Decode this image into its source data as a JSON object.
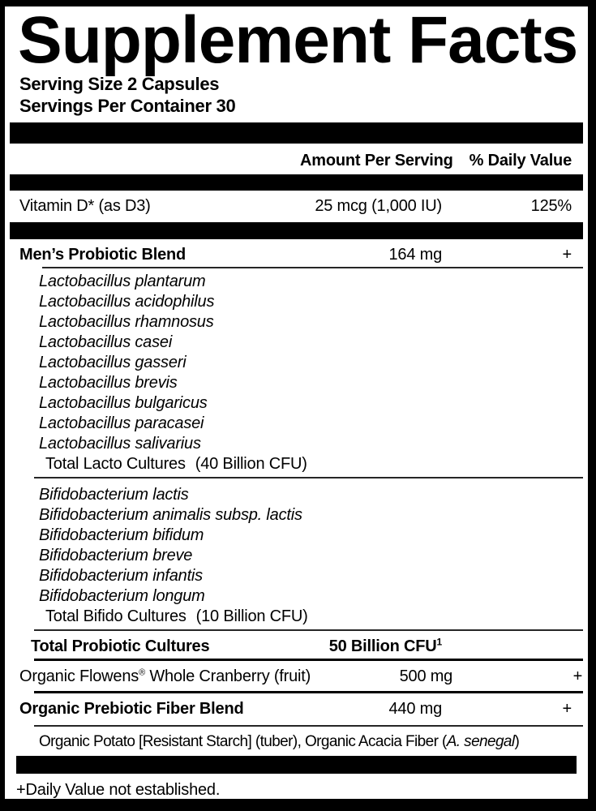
{
  "title": "Supplement Facts",
  "serving": {
    "size": "Serving Size 2 Capsules",
    "per_container": "Servings Per Container 30"
  },
  "columns": {
    "amount": "Amount Per Serving",
    "daily_value": "% Daily Value"
  },
  "rows": {
    "vitamin_d": {
      "name": "Vitamin D* (as D3)",
      "amount": "25 mcg (1,000 IU)",
      "dv": "125%"
    },
    "mens_blend": {
      "name": "Men’s Probiotic Blend",
      "amount": "164 mg",
      "dv": "+"
    },
    "total_probiotic": {
      "name": "Total Probiotic Cultures",
      "amount": "50 Billion CFU",
      "amount_superscript": "1"
    },
    "flowens": {
      "name_prefix": "Organic Flowens",
      "trademark": "®",
      "name_suffix": " Whole Cranberry (fruit)",
      "amount": "500 mg",
      "dv": "+"
    },
    "fiber_blend": {
      "name": "Organic Prebiotic Fiber Blend",
      "amount": "440 mg",
      "dv": "+"
    }
  },
  "lacto": {
    "species": [
      "Lactobacillus plantarum",
      "Lactobacillus acidophilus",
      "Lactobacillus rhamnosus",
      "Lactobacillus casei",
      "Lactobacillus gasseri",
      "Lactobacillus brevis",
      "Lactobacillus bulgaricus",
      "Lactobacillus paracasei",
      "Lactobacillus salivarius"
    ],
    "total_label": "Total Lacto Cultures",
    "total_cfu": "(40 Billion CFU)"
  },
  "bifido": {
    "species": [
      "Bifidobacterium lactis",
      "Bifidobacterium animalis subsp. lactis",
      "Bifidobacterium bifidum",
      "Bifidobacterium breve",
      "Bifidobacterium infantis",
      "Bifidobacterium longum"
    ],
    "total_label": "Total Bifido Cultures",
    "total_cfu": "(10 Billion CFU)"
  },
  "fiber_ingredients": {
    "text_before": "Organic Potato [Resistant Starch] (tuber), Organic Acacia Fiber (",
    "latin_name": "A. senegal",
    "text_after": ")"
  },
  "footnote": "+Daily Value not established.",
  "colors": {
    "ink": "#000000",
    "background": "#ffffff"
  }
}
